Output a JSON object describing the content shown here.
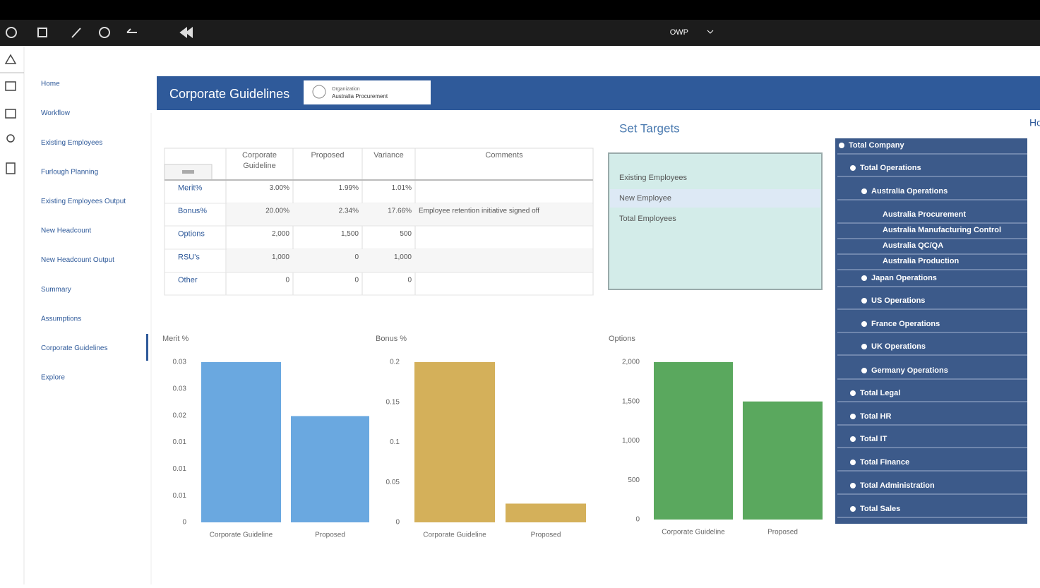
{
  "topbar": {
    "workspace": "OWP"
  },
  "nav": [
    "Home",
    "Workflow",
    "Existing Employees",
    "Furlough Planning",
    "Existing Employees Output",
    "New Headcount",
    "New Headcount Output",
    "Summary",
    "Assumptions",
    "Corporate Guidelines",
    "Explore"
  ],
  "header": {
    "title": "Corporate Guidelines",
    "org_label": "Organization",
    "org_value": "Australia Procurement",
    "right_label": "Ho"
  },
  "table": {
    "columns": [
      "Corporate Guideline",
      "Proposed",
      "Variance",
      "Comments"
    ],
    "rows": [
      {
        "label": "Merit%",
        "cells": [
          "3.00%",
          "1.99%",
          "1.01%"
        ]
      },
      {
        "label": "Bonus%",
        "cells": [
          "20.00%",
          "2.34%",
          "17.66%"
        ],
        "comment": "Employee retention initiative signed off"
      },
      {
        "label": "Options",
        "cells": [
          "2,000",
          "1,500",
          "500"
        ]
      },
      {
        "label": "RSU's",
        "cells": [
          "1,000",
          "0",
          "1,000"
        ]
      },
      {
        "label": "Other",
        "cells": [
          "0",
          "0",
          "0"
        ]
      }
    ]
  },
  "targets": {
    "title": "Set Targets",
    "items": [
      "Existing Employees",
      "New Employee",
      "Total Employees"
    ]
  },
  "tree": {
    "label": "Total Company",
    "children": [
      {
        "label": "Total Operations",
        "children": [
          {
            "label": "Australia Operations",
            "children": [
              {
                "label": "Australia Procurement"
              },
              {
                "label": "Australia Manufacturing Control"
              },
              {
                "label": "Australia QC/QA"
              },
              {
                "label": "Australia Production"
              }
            ]
          },
          {
            "label": "Japan Operations"
          },
          {
            "label": "US Operations"
          },
          {
            "label": "France Operations"
          },
          {
            "label": "UK Operations"
          },
          {
            "label": "Germany Operations"
          }
        ]
      },
      {
        "label": "Total Legal"
      },
      {
        "label": "Total HR"
      },
      {
        "label": "Total IT"
      },
      {
        "label": "Total Finance"
      },
      {
        "label": "Total Administration"
      },
      {
        "label": "Total Sales"
      }
    ]
  },
  "chart_data": [
    {
      "type": "bar",
      "title": "Merit %",
      "categories": [
        "Corporate Guideline",
        "Proposed"
      ],
      "values": [
        0.03,
        0.0199
      ],
      "color": "#6aa8e0",
      "ylim": [
        0,
        0.03
      ],
      "yticks": [
        0,
        {
          "value": 0.005,
          "label": "0.01"
        },
        0.01,
        {
          "value": 0.015,
          "label": "0.01"
        },
        0.02,
        {
          "value": 0.025,
          "label": "0.03"
        },
        0.03
      ]
    },
    {
      "type": "bar",
      "title": "Bonus %",
      "categories": [
        "Corporate Guideline",
        "Proposed"
      ],
      "values": [
        0.2,
        0.0234
      ],
      "color": "#d4b05a",
      "ylim": [
        0,
        0.2
      ],
      "yticks": [
        0,
        0.05,
        0.1,
        0.15,
        0.2
      ]
    },
    {
      "type": "bar",
      "title": "Options",
      "categories": [
        "Corporate Guideline",
        "Proposed"
      ],
      "values": [
        2000,
        1500
      ],
      "color": "#5aa85e",
      "ylim": [
        0,
        2000
      ],
      "yticks": [
        0,
        500,
        {
          "value": 1000,
          "label": "1,000"
        },
        {
          "value": 1500,
          "label": "1,500"
        },
        {
          "value": 2000,
          "label": "2,000"
        }
      ]
    }
  ]
}
